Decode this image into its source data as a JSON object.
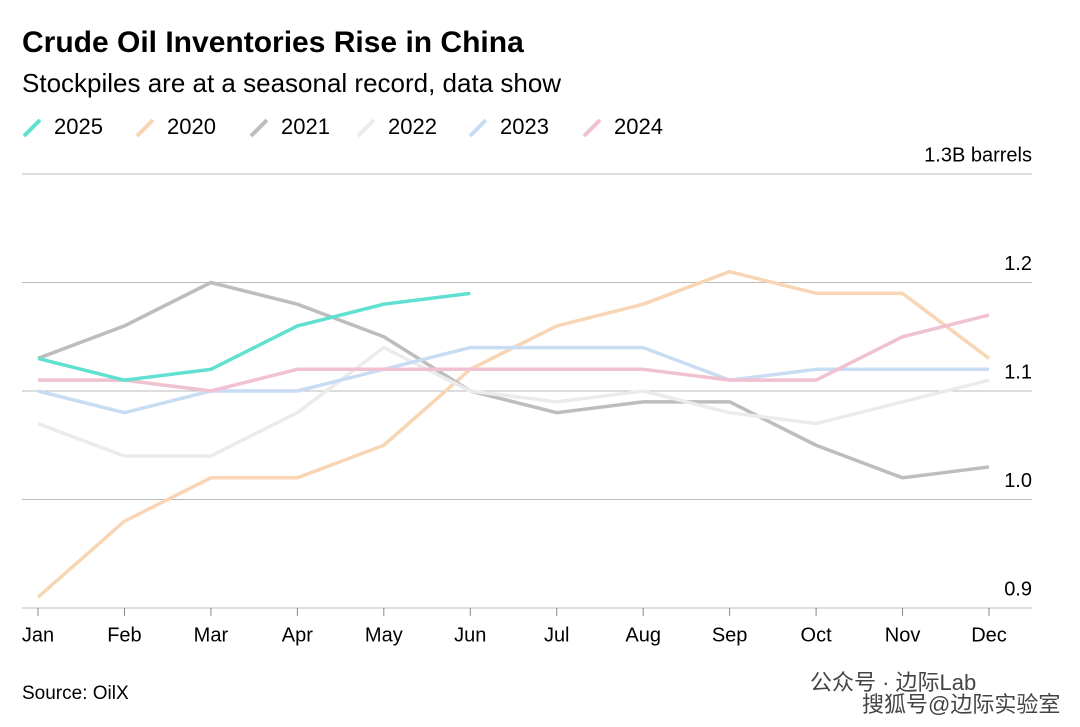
{
  "chart_data": {
    "type": "line",
    "title": "Crude Oil Inventories Rise in China",
    "subtitle": "Stockpiles are at a seasonal record, data show",
    "source": "Source: OilX",
    "watermark": [
      "公众号 · 边际Lab",
      "搜狐号@边际实验室"
    ],
    "categories": [
      "Jan",
      "Feb",
      "Mar",
      "Apr",
      "May",
      "Jun",
      "Jul",
      "Aug",
      "Sep",
      "Oct",
      "Nov",
      "Dec"
    ],
    "ylim": [
      0.9,
      1.3
    ],
    "yticks": [
      0.9,
      {
        "value": 1,
        "label": "1.0"
      },
      1.1,
      1.2,
      {
        "value": 1.3,
        "label": "1.3B barrels"
      }
    ],
    "grid": true,
    "series": [
      {
        "name": "2020",
        "color": "#f8d5b3",
        "values": [
          0.91,
          0.98,
          1.02,
          1.02,
          1.05,
          1.12,
          1.16,
          1.18,
          1.21,
          1.19,
          1.19,
          1.13
        ]
      },
      {
        "name": "2021",
        "color": "#bdbdbd",
        "values": [
          1.13,
          1.16,
          1.2,
          1.18,
          1.15,
          1.1,
          1.08,
          1.09,
          1.09,
          1.05,
          1.02,
          1.03
        ]
      },
      {
        "name": "2022",
        "color": "#ebebeb",
        "values": [
          1.07,
          1.04,
          1.04,
          1.08,
          1.14,
          1.1,
          1.09,
          1.1,
          1.08,
          1.07,
          1.09,
          1.11
        ]
      },
      {
        "name": "2023",
        "color": "#c8dcf3",
        "values": [
          1.1,
          1.08,
          1.1,
          1.1,
          1.12,
          1.14,
          1.14,
          1.14,
          1.11,
          1.12,
          1.12,
          1.12
        ]
      },
      {
        "name": "2024",
        "color": "#f0c1d1",
        "values": [
          1.11,
          1.11,
          1.1,
          1.12,
          1.12,
          1.12,
          1.12,
          1.12,
          1.11,
          1.11,
          1.15,
          1.17
        ]
      },
      {
        "name": "2025",
        "color": "#5fe0d0",
        "values": [
          1.13,
          1.11,
          1.12,
          1.16,
          1.18,
          1.19,
          null,
          null,
          null,
          null,
          null,
          null
        ]
      }
    ]
  }
}
